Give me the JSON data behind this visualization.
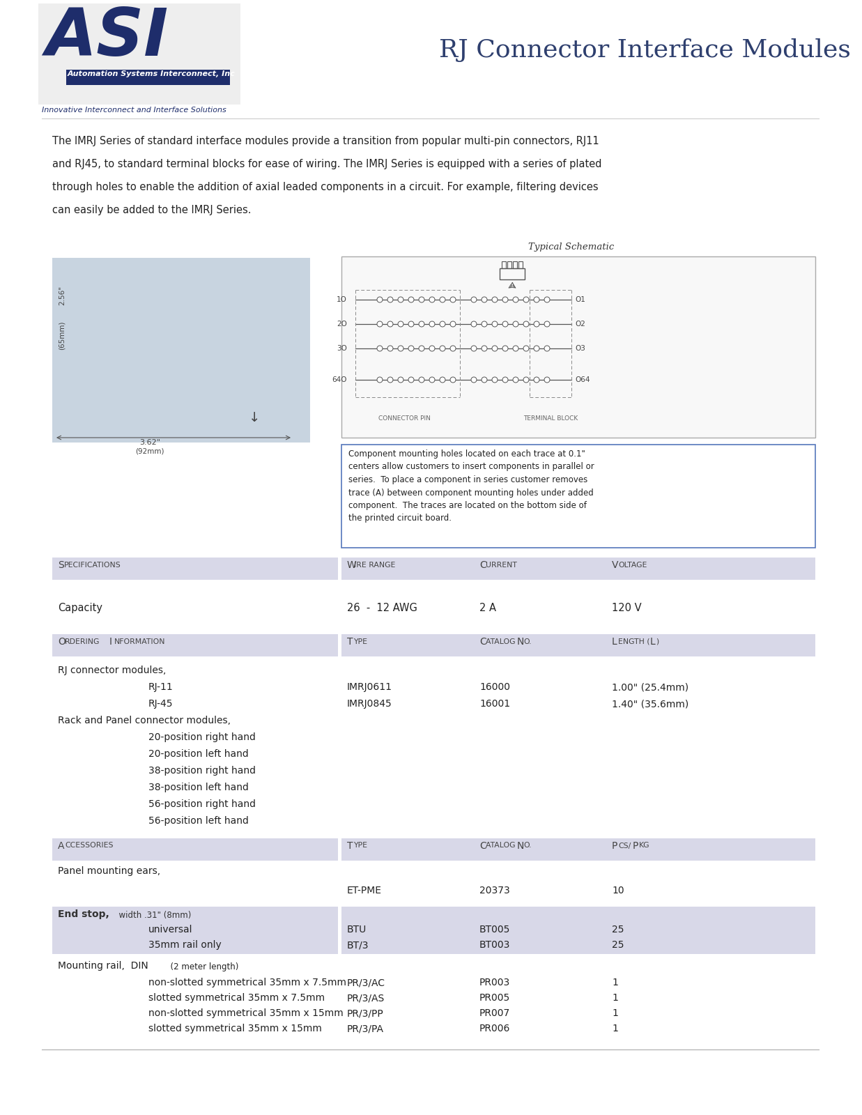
{
  "title": "RJ Connector Interface Modules",
  "title_color": "#2e3f6e",
  "title_fontsize": 26,
  "bg_color": "#ffffff",
  "asi_blue": "#1e2d6b",
  "header_bg": "#d8d8e8",
  "body_text_color": "#222222",
  "intro_line1": "The IMRJ Series of standard interface modules provide a transition from popular multi-pin connectors, RJ11",
  "intro_line2": "and RJ45, to standard terminal blocks for ease of wiring. The IMRJ Series is equipped with a series of plated",
  "intro_line3": "through holes to enable the addition of axial leaded components in a circuit. For example, filtering devices",
  "intro_line4": "can easily be added to the IMRJ Series.",
  "schematic_title": "Typical Schematic",
  "schematic_note": "Component mounting holes located on each trace at 0.1\"\ncenters allow customers to insert components in parallel or\nseries.  To place a component in series customer removes\ntrace (A) between component mounting holes under added\ncomponent.  The traces are located on the bottom side of\nthe printed circuit board."
}
